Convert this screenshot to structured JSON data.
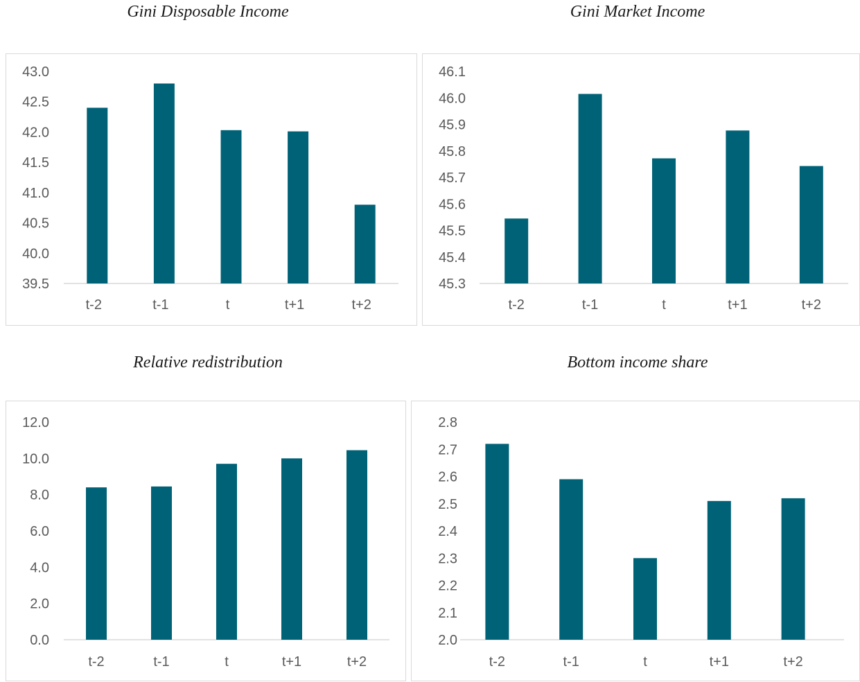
{
  "chart_data": [
    {
      "type": "bar",
      "title": "Gini Disposable Income",
      "categories": [
        "t-2",
        "t-1",
        "t",
        "t+1",
        "t+2"
      ],
      "values": [
        42.4,
        42.8,
        42.03,
        42.01,
        40.8
      ],
      "ylim": [
        39.5,
        43.0
      ],
      "yticks": [
        "39.5",
        "40.0",
        "40.5",
        "41.0",
        "41.5",
        "42.0",
        "42.5",
        "43.0"
      ],
      "grid": false,
      "bar_color": "#006277"
    },
    {
      "type": "bar",
      "title": "Gini Market Income",
      "categories": [
        "t-2",
        "t-1",
        "t",
        "t+1",
        "t+2"
      ],
      "values": [
        45.545,
        46.015,
        45.772,
        45.877,
        45.743
      ],
      "ylim": [
        45.3,
        46.1
      ],
      "yticks": [
        "45.3",
        "45.4",
        "45.5",
        "45.6",
        "45.7",
        "45.8",
        "45.9",
        "46.0",
        "46.1"
      ],
      "grid": false,
      "bar_color": "#006277"
    },
    {
      "type": "bar",
      "title": "Relative redistribution",
      "categories": [
        "t-2",
        "t-1",
        "t",
        "t+1",
        "t+2"
      ],
      "values": [
        8.4,
        8.45,
        9.7,
        10.0,
        10.45
      ],
      "ylim": [
        0.0,
        12.0
      ],
      "yticks": [
        "0.0",
        "2.0",
        "4.0",
        "6.0",
        "8.0",
        "10.0",
        "12.0"
      ],
      "grid": false,
      "bar_color": "#006277"
    },
    {
      "type": "bar",
      "title": "Bottom income share",
      "categories": [
        "t-2",
        "t-1",
        "t",
        "t+1",
        "t+2"
      ],
      "values": [
        2.72,
        2.59,
        2.3,
        2.51,
        2.52
      ],
      "ylim": [
        2.0,
        2.8
      ],
      "yticks": [
        "2.0",
        "2.1",
        "2.2",
        "2.3",
        "2.4",
        "2.5",
        "2.6",
        "2.7",
        "2.8"
      ],
      "grid": false,
      "bar_color": "#006277"
    }
  ]
}
